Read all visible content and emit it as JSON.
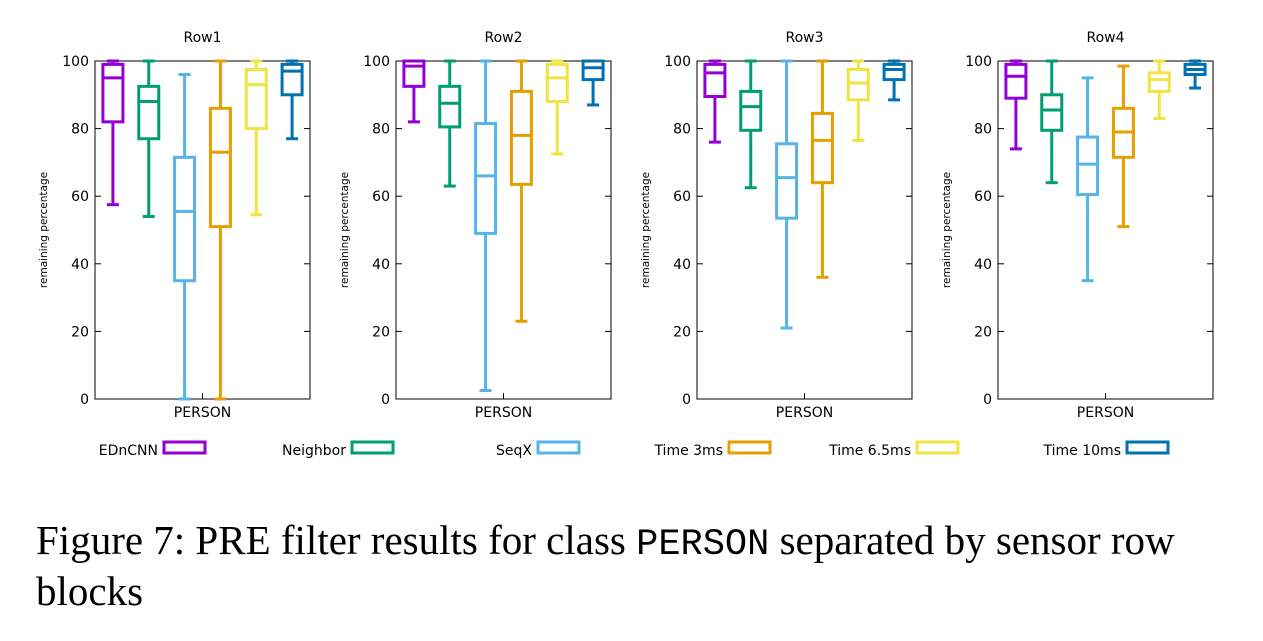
{
  "figure": {
    "caption_prefix": "Figure 7: PRE filter results for class",
    "caption_code": "PERSON",
    "caption_suffix": "separated by sensor row blocks"
  },
  "legend": [
    {
      "name": "EDnCNN",
      "color": "#9400d3"
    },
    {
      "name": "Neighbor",
      "color": "#009e73"
    },
    {
      "name": "SeqX",
      "color": "#56b4e9"
    },
    {
      "name": "Time 3ms",
      "color": "#e69f00"
    },
    {
      "name": "Time 6.5ms",
      "color": "#f0e442"
    },
    {
      "name": "Time 10ms",
      "color": "#0072b2"
    }
  ],
  "chart_data": [
    {
      "type": "box",
      "title": "Row1",
      "xlabel": "PERSON",
      "ylabel": "remaining percentage",
      "ylim": [
        0,
        100
      ],
      "yticks": [
        0,
        20,
        40,
        60,
        80,
        100
      ],
      "grid": false,
      "series": [
        {
          "name": "EDnCNN",
          "min": 57.5,
          "q1": 82,
          "median": 95,
          "q3": 99,
          "max": 100
        },
        {
          "name": "Neighbor",
          "min": 54,
          "q1": 77,
          "median": 88,
          "q3": 92.5,
          "max": 100
        },
        {
          "name": "SeqX",
          "min": 0,
          "q1": 35,
          "median": 55.5,
          "q3": 71.5,
          "max": 96
        },
        {
          "name": "Time 3ms",
          "min": 0,
          "q1": 51,
          "median": 73,
          "q3": 86,
          "max": 100
        },
        {
          "name": "Time 6.5ms",
          "min": 54.5,
          "q1": 80,
          "median": 93,
          "q3": 97.5,
          "max": 100
        },
        {
          "name": "Time 10ms",
          "min": 77,
          "q1": 90,
          "median": 97,
          "q3": 99,
          "max": 100
        }
      ]
    },
    {
      "type": "box",
      "title": "Row2",
      "xlabel": "PERSON",
      "ylabel": "remaining percentage",
      "ylim": [
        0,
        100
      ],
      "yticks": [
        0,
        20,
        40,
        60,
        80,
        100
      ],
      "grid": false,
      "series": [
        {
          "name": "EDnCNN",
          "min": 82,
          "q1": 92.5,
          "median": 98.5,
          "q3": 100,
          "max": 100
        },
        {
          "name": "Neighbor",
          "min": 63,
          "q1": 80.5,
          "median": 87.5,
          "q3": 92.5,
          "max": 100
        },
        {
          "name": "SeqX",
          "min": 2.5,
          "q1": 49,
          "median": 66,
          "q3": 81.5,
          "max": 100
        },
        {
          "name": "Time 3ms",
          "min": 23,
          "q1": 63.5,
          "median": 78,
          "q3": 91,
          "max": 100
        },
        {
          "name": "Time 6.5ms",
          "min": 72.5,
          "q1": 88,
          "median": 95,
          "q3": 99,
          "max": 100
        },
        {
          "name": "Time 10ms",
          "min": 87,
          "q1": 94.5,
          "median": 98,
          "q3": 100,
          "max": 100
        }
      ]
    },
    {
      "type": "box",
      "title": "Row3",
      "xlabel": "PERSON",
      "ylabel": "remaining percentage",
      "ylim": [
        0,
        100
      ],
      "yticks": [
        0,
        20,
        40,
        60,
        80,
        100
      ],
      "grid": false,
      "series": [
        {
          "name": "EDnCNN",
          "min": 76,
          "q1": 89.5,
          "median": 96.5,
          "q3": 99,
          "max": 100
        },
        {
          "name": "Neighbor",
          "min": 62.5,
          "q1": 79.5,
          "median": 86.5,
          "q3": 91,
          "max": 100
        },
        {
          "name": "SeqX",
          "min": 21,
          "q1": 53.5,
          "median": 65.5,
          "q3": 75.5,
          "max": 100
        },
        {
          "name": "Time 3ms",
          "min": 36,
          "q1": 64,
          "median": 76.5,
          "q3": 84.5,
          "max": 100
        },
        {
          "name": "Time 6.5ms",
          "min": 76.5,
          "q1": 88.5,
          "median": 93.5,
          "q3": 97.5,
          "max": 100
        },
        {
          "name": "Time 10ms",
          "min": 88.5,
          "q1": 94.5,
          "median": 97.5,
          "q3": 99,
          "max": 100
        }
      ]
    },
    {
      "type": "box",
      "title": "Row4",
      "xlabel": "PERSON",
      "ylabel": "remaining percentage",
      "ylim": [
        0,
        100
      ],
      "yticks": [
        0,
        20,
        40,
        60,
        80,
        100
      ],
      "grid": false,
      "series": [
        {
          "name": "EDnCNN",
          "min": 74,
          "q1": 89,
          "median": 95.5,
          "q3": 99,
          "max": 100
        },
        {
          "name": "Neighbor",
          "min": 64,
          "q1": 79.5,
          "median": 85.5,
          "q3": 90,
          "max": 100
        },
        {
          "name": "SeqX",
          "min": 35,
          "q1": 60.5,
          "median": 69.5,
          "q3": 77.5,
          "max": 95
        },
        {
          "name": "Time 3ms",
          "min": 51,
          "q1": 71.5,
          "median": 79,
          "q3": 86,
          "max": 98.5
        },
        {
          "name": "Time 6.5ms",
          "min": 83,
          "q1": 91,
          "median": 94.5,
          "q3": 96.5,
          "max": 100
        },
        {
          "name": "Time 10ms",
          "min": 92,
          "q1": 96,
          "median": 97.5,
          "q3": 99,
          "max": 100
        }
      ]
    }
  ]
}
